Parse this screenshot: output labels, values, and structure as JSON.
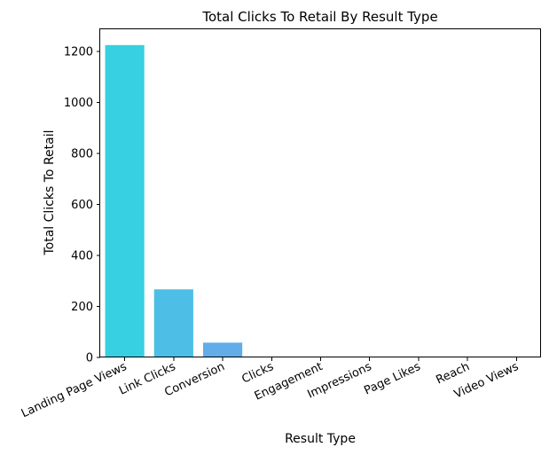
{
  "chart_data": {
    "type": "bar",
    "title": "Total Clicks To Retail By Result Type",
    "xlabel": "Result Type",
    "ylabel": "Total Clicks To Retail",
    "categories": [
      "Landing Page Views",
      "Link Clicks",
      "Conversion",
      "Clicks",
      "Engagement",
      "Impressions",
      "Page Likes",
      "Reach",
      "Video Views"
    ],
    "values": [
      1225,
      267,
      58,
      0,
      0,
      0,
      0,
      0,
      0
    ],
    "colors": [
      "#36d0e2",
      "#4dbee5",
      "#60ade9",
      "#73a0ec",
      "#8c93ee",
      "#a588ef",
      "#bd7eef",
      "#d077ee",
      "#e070ec"
    ],
    "ylim": [
      0,
      1287
    ],
    "yticks": [
      0,
      200,
      400,
      600,
      800,
      1000,
      1200
    ],
    "grid": false,
    "legend": false
  }
}
